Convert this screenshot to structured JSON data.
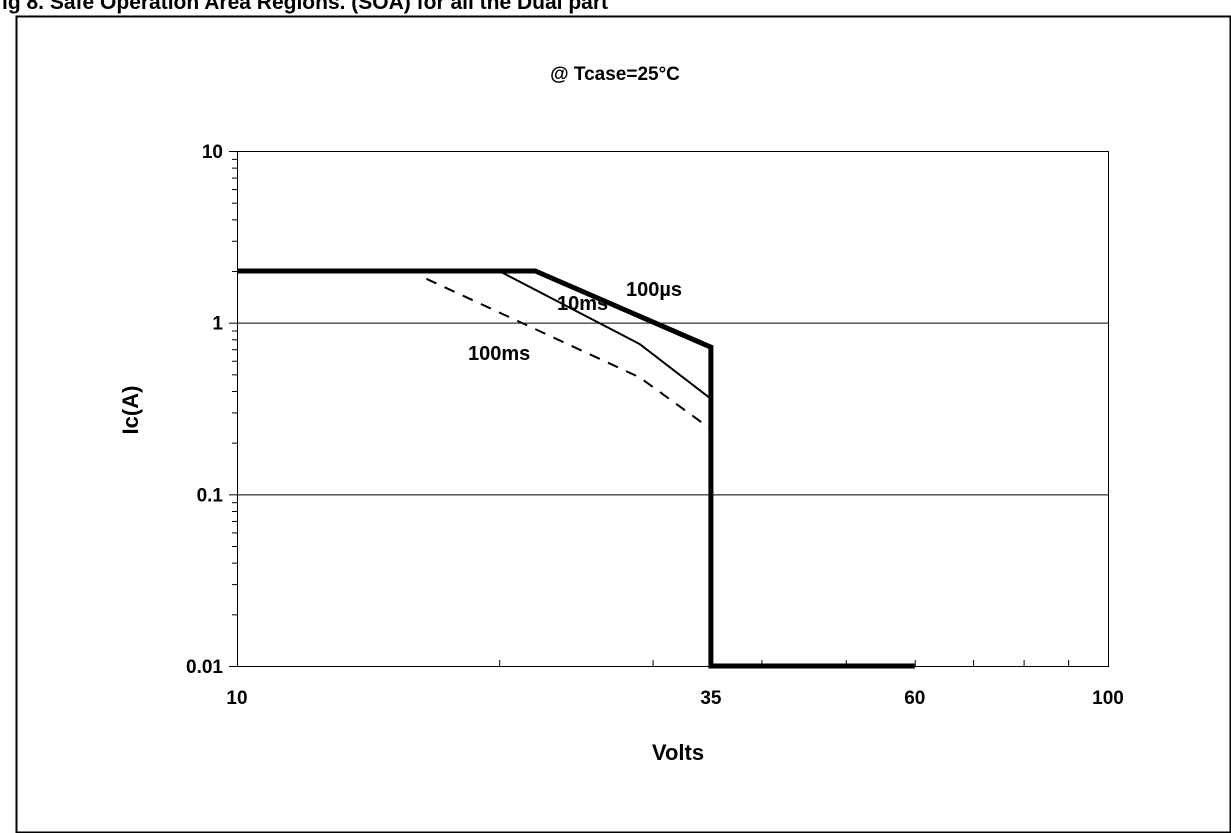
{
  "header": {
    "caption": "ig 8. Safe Operation Area Regions. (SOA) for all the Dual part"
  },
  "chart_data": {
    "type": "line",
    "title": "@ Tcase=25°C",
    "xlabel": "Volts",
    "ylabel": "Ic(A)",
    "xscale": "log",
    "yscale": "log",
    "xlim": [
      10,
      100
    ],
    "ylim": [
      0.01,
      10
    ],
    "x_tick_labels": [
      {
        "value": 10,
        "label": "10"
      },
      {
        "value": 35,
        "label": "35"
      },
      {
        "value": 60,
        "label": "60"
      },
      {
        "value": 100,
        "label": "100"
      }
    ],
    "y_tick_labels": [
      {
        "value": 10,
        "label": "10"
      },
      {
        "value": 1,
        "label": "1"
      },
      {
        "value": 0.1,
        "label": "0.1"
      },
      {
        "value": 0.01,
        "label": "0.01"
      }
    ],
    "grid": {
      "horizontal": true,
      "vertical": false
    },
    "legend": "none",
    "series": [
      {
        "name": "100µs",
        "style": "thick-solid",
        "x": [
          10,
          22,
          35,
          35,
          60
        ],
        "y": [
          2,
          2,
          0.72,
          0.01,
          0.01
        ]
      },
      {
        "name": "10ms",
        "style": "thin-solid",
        "x": [
          20,
          29,
          35
        ],
        "y": [
          2,
          0.75,
          0.36
        ]
      },
      {
        "name": "100ms",
        "style": "dashed",
        "x": [
          16.5,
          29,
          35
        ],
        "y": [
          1.8,
          0.48,
          0.24
        ]
      }
    ]
  }
}
